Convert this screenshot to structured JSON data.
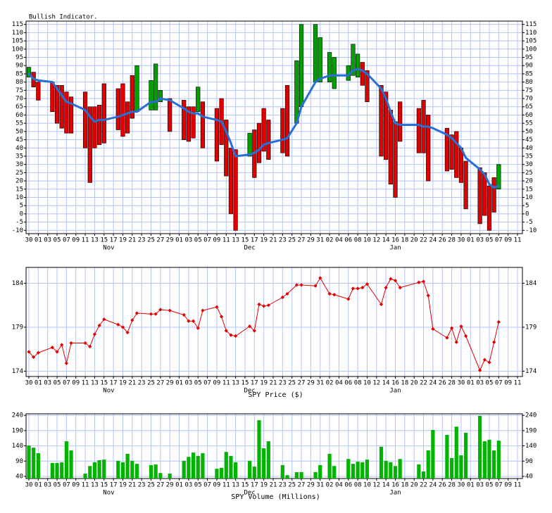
{
  "chart_data": [
    {
      "type": "floating-bar",
      "title": "Bullish Indicator.",
      "categories": [
        "30",
        null,
        "01",
        null,
        "03",
        null,
        "05",
        null,
        "07",
        null,
        "09",
        null,
        "11",
        null,
        "13",
        null,
        "15",
        null,
        "17",
        null,
        "19",
        null,
        "21",
        null,
        "23",
        null,
        "25",
        null,
        "27",
        null,
        "29",
        null,
        "01",
        null,
        "03",
        null,
        "05",
        null,
        "07",
        null,
        "09",
        null,
        "11",
        null,
        "13",
        null,
        "15",
        null,
        "17",
        null,
        "19",
        null,
        "21",
        null,
        "23",
        null,
        "25",
        null,
        "27",
        null,
        "29",
        null,
        "31",
        null,
        "02",
        null,
        "04",
        null,
        "06",
        null,
        "08",
        null,
        "10",
        null,
        "12",
        null,
        "14",
        null,
        "16",
        null,
        "18",
        null,
        "20",
        null,
        "22",
        null,
        "24",
        null,
        "26",
        null,
        "28",
        null,
        "30",
        null,
        "01",
        null,
        "03",
        null,
        "05",
        null,
        "07",
        null,
        "09",
        null,
        "11"
      ],
      "months": [
        "Nov",
        "Dec",
        "Jan"
      ],
      "from": [
        83,
        86,
        80,
        null,
        null,
        80,
        78,
        78,
        74,
        71,
        null,
        null,
        74,
        65,
        65,
        66,
        79,
        null,
        null,
        76,
        79,
        68,
        84,
        62,
        null,
        null,
        63,
        63,
        68,
        null,
        70,
        null,
        null,
        69,
        65,
        65,
        62,
        68,
        null,
        null,
        64,
        70,
        57,
        40,
        39,
        null,
        null,
        35,
        51,
        55,
        64,
        57,
        null,
        null,
        64,
        78,
        null,
        55,
        65,
        null,
        null,
        80,
        80,
        null,
        80,
        76,
        null,
        null,
        81,
        84,
        83,
        92,
        87,
        null,
        null,
        78,
        74,
        63,
        56,
        68,
        null,
        null,
        null,
        64,
        69,
        60,
        null,
        null,
        null,
        52,
        48,
        50,
        40,
        32,
        null,
        null,
        28,
        25,
        17,
        22,
        15,
        null,
        null,
        null,
        null
      ],
      "to": [
        89,
        77,
        69,
        null,
        null,
        62,
        55,
        52,
        49,
        49,
        null,
        null,
        40,
        19,
        40,
        42,
        43,
        null,
        null,
        51,
        47,
        49,
        58,
        90,
        null,
        null,
        81,
        91,
        75,
        null,
        50,
        null,
        null,
        45,
        44,
        46,
        77,
        40,
        null,
        null,
        32,
        42,
        23,
        0,
        -10,
        null,
        null,
        49,
        22,
        31,
        38,
        33,
        null,
        null,
        37,
        35,
        null,
        93,
        115,
        null,
        null,
        115,
        107,
        null,
        98,
        95,
        null,
        null,
        90,
        103,
        97,
        78,
        68,
        null,
        null,
        35,
        33,
        18,
        10,
        44,
        null,
        null,
        null,
        37,
        37,
        20,
        null,
        null,
        null,
        26,
        27,
        22,
        19,
        3,
        null,
        null,
        -6,
        -1,
        -10,
        1,
        30,
        null,
        null,
        null,
        null
      ],
      "line": [
        85,
        82,
        81,
        null,
        null,
        80,
        76,
        72,
        68,
        67,
        null,
        null,
        63,
        59,
        56,
        57,
        57,
        null,
        null,
        59,
        60,
        61,
        62,
        62,
        null,
        null,
        68,
        68,
        70,
        null,
        69,
        null,
        null,
        64,
        62,
        61,
        61,
        59,
        null,
        null,
        57,
        56,
        50,
        43,
        35,
        null,
        null,
        36,
        37,
        39,
        42,
        43,
        null,
        null,
        45,
        46,
        null,
        55,
        65,
        null,
        null,
        80,
        82,
        null,
        84,
        84,
        null,
        null,
        84,
        87,
        88,
        87,
        85,
        null,
        null,
        76,
        70,
        62,
        55,
        54,
        null,
        null,
        null,
        54,
        53,
        53,
        52,
        null,
        null,
        48,
        46,
        43,
        40,
        34,
        null,
        null,
        27,
        24,
        18,
        16,
        17,
        null,
        null,
        null,
        null
      ],
      "up_color": "#00a000",
      "down_color": "#e00000",
      "line_color": "#2a6fd6",
      "ylim": [
        -12,
        117
      ],
      "yticks": [
        115,
        110,
        105,
        100,
        95,
        90,
        85,
        80,
        75,
        70,
        65,
        60,
        55,
        50,
        45,
        40,
        35,
        30,
        25,
        20,
        15,
        10,
        5,
        0,
        -5,
        -10
      ],
      "grid": true
    },
    {
      "type": "line",
      "xlabel": "SPY Price ($)",
      "values": [
        176.2,
        175.6,
        176.1,
        null,
        null,
        176.7,
        176.2,
        177.0,
        174.9,
        177.2,
        null,
        null,
        177.2,
        176.8,
        178.2,
        179.2,
        179.9,
        null,
        null,
        179.3,
        179.0,
        178.4,
        179.8,
        180.6,
        null,
        null,
        180.5,
        180.5,
        181.0,
        null,
        180.9,
        null,
        null,
        180.4,
        179.7,
        179.7,
        178.9,
        180.9,
        null,
        null,
        181.3,
        180.2,
        178.6,
        178.1,
        178.0,
        null,
        null,
        179.1,
        178.6,
        181.6,
        181.4,
        181.5,
        null,
        null,
        182.4,
        182.8,
        null,
        183.8,
        183.8,
        null,
        null,
        183.7,
        184.6,
        null,
        182.8,
        182.7,
        null,
        null,
        182.2,
        183.4,
        183.4,
        183.5,
        183.9,
        null,
        null,
        181.6,
        183.5,
        184.5,
        184.3,
        183.5,
        null,
        null,
        null,
        184.1,
        184.2,
        182.6,
        178.8,
        null,
        null,
        177.8,
        178.9,
        177.3,
        179.1,
        178.0,
        null,
        null,
        174.1,
        175.3,
        175.0,
        177.3,
        179.6,
        null,
        null,
        null,
        null
      ],
      "color": "#e00000",
      "ylim": [
        173.4,
        185.8
      ],
      "yticks": [
        174,
        179,
        184
      ],
      "grid": true
    },
    {
      "type": "bar",
      "xlabel": "SPY Volume (Millions)",
      "values": [
        141,
        134,
        116,
        null,
        null,
        84,
        84,
        86,
        155,
        125,
        null,
        null,
        49,
        74,
        86,
        93,
        95,
        null,
        null,
        91,
        86,
        114,
        91,
        81,
        null,
        null,
        77,
        79,
        51,
        null,
        49,
        null,
        null,
        91,
        104,
        118,
        107,
        116,
        null,
        null,
        65,
        68,
        120,
        107,
        86,
        null,
        null,
        91,
        72,
        224,
        132,
        155,
        null,
        null,
        77,
        44,
        null,
        54,
        54,
        null,
        null,
        54,
        77,
        null,
        114,
        74,
        null,
        null,
        97,
        81,
        88,
        86,
        95,
        null,
        null,
        137,
        91,
        86,
        74,
        97,
        null,
        null,
        null,
        79,
        56,
        125,
        192,
        null,
        null,
        176,
        100,
        203,
        109,
        183,
        null,
        null,
        238,
        155,
        160,
        125,
        157,
        null,
        null,
        null,
        null
      ],
      "color": "#00b400",
      "ylim": [
        33,
        245
      ],
      "yticks": [
        40,
        90,
        140,
        190,
        240
      ],
      "grid": true
    }
  ]
}
